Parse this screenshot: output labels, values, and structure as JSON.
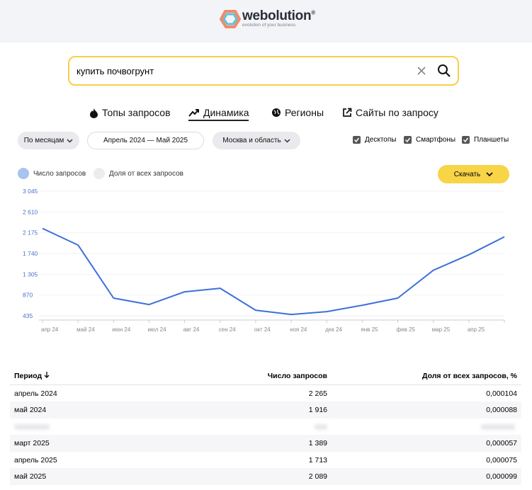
{
  "header": {
    "logo": "webolution",
    "logo_mark": "®",
    "tagline": "evolution of your business"
  },
  "search": {
    "query": "купить почвогрунт"
  },
  "tabs": [
    "Топы запросов",
    "Динамика",
    "Регионы",
    "Сайты по запросу"
  ],
  "filters": {
    "period": "По месяцам",
    "range": "Апрель 2024 — Май 2025",
    "region": "Москва и область",
    "devices": [
      "Десктопы",
      "Смартфоны",
      "Планшеты"
    ]
  },
  "legend": [
    "Доля от всех запросов"
  ],
  "download": "Скачать",
  "chart": {
    "type": "line",
    "categories": [
      "апр 24",
      "май 24",
      "июн 24",
      "июл 24",
      "авг 24",
      "сен 24",
      "окт 24",
      "ноя 24",
      "дек 24",
      "янв 25",
      "фев 25",
      "мар 25",
      "апр 25",
      null
    ],
    "series": [
      {
        "name": "Число запросов",
        "color": "#3d6fd9",
        "values": [
          2265,
          1916,
          805,
          671,
          938,
          1012,
          552,
          463,
          522,
          656,
          805,
          1389,
          1713,
          2089
        ]
      }
    ],
    "ylim": [
      346,
      3045
    ],
    "yticks": [
      {
        "value": 435,
        "label": "435"
      },
      {
        "value": 870,
        "label": "870"
      },
      {
        "value": 1305,
        "label": "1 305"
      },
      {
        "value": 1740,
        "label": "1 740"
      },
      {
        "value": 2175,
        "label": "2 175"
      },
      {
        "value": 2610,
        "label": "2 610"
      },
      {
        "value": 3045,
        "label": "3 045"
      }
    ],
    "grid": true
  },
  "table": {
    "columns": [
      "Период",
      "Число запросов",
      "Доля от всех запросов, %"
    ],
    "rows": [
      [
        "апрель 2024",
        "2 265",
        "0,000104"
      ],
      [
        "май 2024",
        "1 916",
        "0,000088"
      ],
      [
        "март 2025",
        "1 389",
        "0,000057"
      ],
      [
        "апрель 2025",
        "1 713",
        "0,000075"
      ],
      [
        "май 2025",
        "2 089",
        "0,000099"
      ]
    ]
  }
}
